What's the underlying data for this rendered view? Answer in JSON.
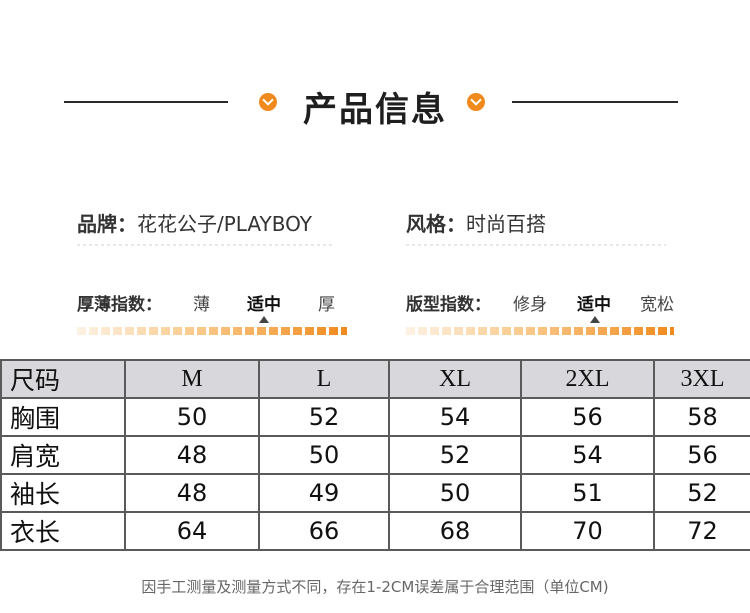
{
  "title": "产品信息",
  "colors": {
    "accent": "#f08a1c",
    "header_bg": "#d8d8dc"
  },
  "brand": {
    "label": "品牌：",
    "value": "花花公子/PLAYBOY"
  },
  "style": {
    "label": "风格：",
    "value": "时尚百搭"
  },
  "thickness": {
    "label": "厚薄指数：",
    "options": [
      "薄",
      "适中",
      "厚"
    ],
    "selected": "适中"
  },
  "fit": {
    "label": "版型指数：",
    "options": [
      "修身",
      "适中",
      "宽松"
    ],
    "selected": "适中"
  },
  "size_table": {
    "header": [
      "尺码",
      "M",
      "L",
      "XL",
      "2XL",
      "3XL"
    ],
    "rows": [
      [
        "胸围",
        "50",
        "52",
        "54",
        "56",
        "58"
      ],
      [
        "肩宽",
        "48",
        "50",
        "52",
        "54",
        "56"
      ],
      [
        "袖长",
        "48",
        "49",
        "50",
        "51",
        "52"
      ],
      [
        "衣长",
        "64",
        "66",
        "68",
        "70",
        "72"
      ]
    ]
  },
  "note": "因手工测量及测量方式不同，存在1-2CM误差属于合理范围（单位CM)"
}
